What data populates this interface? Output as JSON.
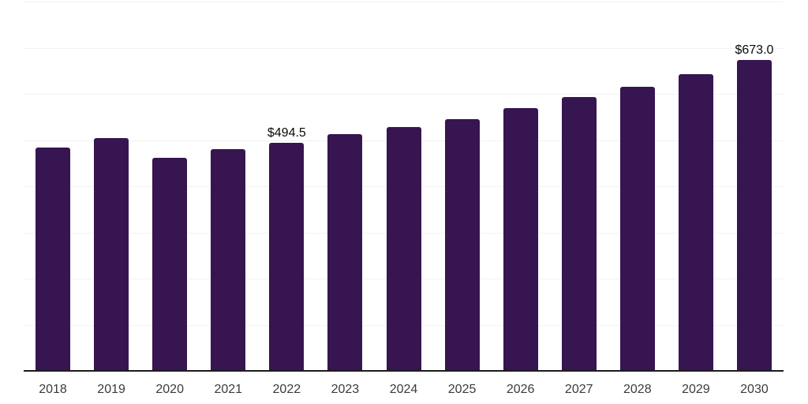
{
  "chart_data": {
    "type": "bar",
    "title": "",
    "xlabel": "",
    "ylabel": "",
    "categories": [
      "2018",
      "2019",
      "2020",
      "2021",
      "2022",
      "2023",
      "2024",
      "2025",
      "2026",
      "2027",
      "2028",
      "2029",
      "2030"
    ],
    "values": [
      483.5,
      504.5,
      461.0,
      479.5,
      494.5,
      512.5,
      529.0,
      546.0,
      569.0,
      593.0,
      616.0,
      643.0,
      673.0
    ],
    "data_labels": [
      {
        "category": "2022",
        "text": "$494.5"
      },
      {
        "category": "2030",
        "text": "$673.0"
      }
    ],
    "ylim": [
      0,
      800
    ],
    "grid_interval": 100,
    "grid": true,
    "legend": false,
    "y_axis_labels_visible": false
  },
  "colors": {
    "bar": "#361550",
    "gridline": "#f2f2f2",
    "axis": "#1c1c1c",
    "tick_label": "#3b3b3b",
    "data_label": "#0a0a0a",
    "background": "#ffffff"
  }
}
